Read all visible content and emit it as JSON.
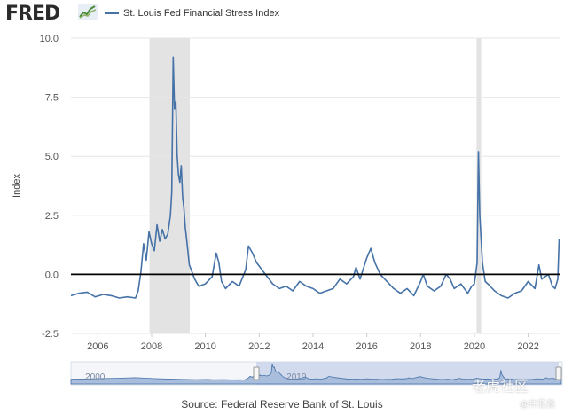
{
  "header": {
    "logo_text": "FRED",
    "logo_icon": "line-graph-icon"
  },
  "colors": {
    "series": "#4572a7",
    "recession": "#e3e3e3",
    "zero_line": "#000000",
    "navigator_fill": "#a9bddc",
    "navigator_select": "#c8d5ea"
  },
  "chart_data": {
    "type": "line",
    "title": "",
    "ylabel": "Index",
    "xlabel": "",
    "xlim": [
      2005.0,
      2023.2
    ],
    "ylim": [
      -2.5,
      10.0
    ],
    "y_ticks": [
      "-2.5",
      "0.0",
      "2.5",
      "5.0",
      "7.5",
      "10.0"
    ],
    "x_ticks": [
      "2006",
      "2008",
      "2010",
      "2012",
      "2014",
      "2016",
      "2018",
      "2020",
      "2022"
    ],
    "grid": "horizontal",
    "reference_line": 0,
    "recessions": [
      [
        2007.92,
        2009.42
      ],
      [
        2020.08,
        2020.25
      ]
    ],
    "series": [
      {
        "name": "St. Louis Fed Financial Stress Index",
        "x": [
          2005.0,
          2005.3,
          2005.6,
          2005.9,
          2006.2,
          2006.5,
          2006.8,
          2007.1,
          2007.4,
          2007.5,
          2007.6,
          2007.7,
          2007.8,
          2007.9,
          2008.0,
          2008.1,
          2008.2,
          2008.3,
          2008.4,
          2008.5,
          2008.6,
          2008.7,
          2008.75,
          2008.8,
          2008.85,
          2008.9,
          2008.95,
          2009.0,
          2009.05,
          2009.1,
          2009.15,
          2009.2,
          2009.25,
          2009.3,
          2009.4,
          2009.5,
          2009.6,
          2009.75,
          2010.0,
          2010.25,
          2010.4,
          2010.5,
          2010.6,
          2010.75,
          2011.0,
          2011.25,
          2011.5,
          2011.6,
          2011.75,
          2011.9,
          2012.1,
          2012.3,
          2012.5,
          2012.75,
          2013.0,
          2013.25,
          2013.5,
          2013.75,
          2014.0,
          2014.25,
          2014.5,
          2014.75,
          2015.0,
          2015.25,
          2015.5,
          2015.6,
          2015.75,
          2016.0,
          2016.15,
          2016.3,
          2016.5,
          2016.75,
          2017.0,
          2017.25,
          2017.5,
          2017.75,
          2018.0,
          2018.1,
          2018.25,
          2018.5,
          2018.75,
          2018.95,
          2019.1,
          2019.25,
          2019.5,
          2019.75,
          2019.9,
          2020.0,
          2020.1,
          2020.15,
          2020.2,
          2020.3,
          2020.4,
          2020.5,
          2020.75,
          2021.0,
          2021.25,
          2021.5,
          2021.75,
          2022.0,
          2022.25,
          2022.4,
          2022.5,
          2022.75,
          2022.9,
          2023.0,
          2023.1,
          2023.15
        ],
        "values": [
          -0.9,
          -0.8,
          -0.75,
          -0.95,
          -0.85,
          -0.9,
          -1.0,
          -0.95,
          -1.0,
          -0.7,
          0.1,
          1.3,
          0.6,
          1.8,
          1.3,
          1.0,
          2.1,
          1.4,
          1.9,
          1.5,
          1.7,
          2.5,
          3.5,
          9.2,
          7.0,
          7.3,
          5.0,
          4.2,
          3.9,
          4.6,
          3.3,
          2.8,
          2.0,
          1.5,
          0.4,
          0.1,
          -0.2,
          -0.5,
          -0.4,
          -0.1,
          0.9,
          0.5,
          -0.3,
          -0.6,
          -0.3,
          -0.5,
          0.2,
          1.2,
          0.9,
          0.5,
          0.2,
          -0.1,
          -0.4,
          -0.6,
          -0.5,
          -0.7,
          -0.3,
          -0.5,
          -0.6,
          -0.8,
          -0.7,
          -0.6,
          -0.2,
          -0.4,
          -0.1,
          0.3,
          -0.2,
          0.7,
          1.1,
          0.5,
          0.0,
          -0.3,
          -0.6,
          -0.8,
          -0.6,
          -0.9,
          -0.3,
          0.0,
          -0.5,
          -0.7,
          -0.5,
          0.0,
          -0.2,
          -0.6,
          -0.4,
          -0.8,
          -0.5,
          -0.4,
          0.5,
          5.2,
          2.5,
          0.5,
          -0.3,
          -0.4,
          -0.7,
          -0.9,
          -1.0,
          -0.8,
          -0.7,
          -0.3,
          -0.6,
          0.4,
          -0.2,
          0.0,
          -0.5,
          -0.6,
          -0.2,
          1.5
        ]
      }
    ],
    "navigator": {
      "labels": [
        "2000",
        "2010"
      ]
    }
  },
  "source": "Source: Federal Reserve Bank of St. Louis",
  "watermark": {
    "main": "老虎社区",
    "sub": "@许亚鑫"
  }
}
